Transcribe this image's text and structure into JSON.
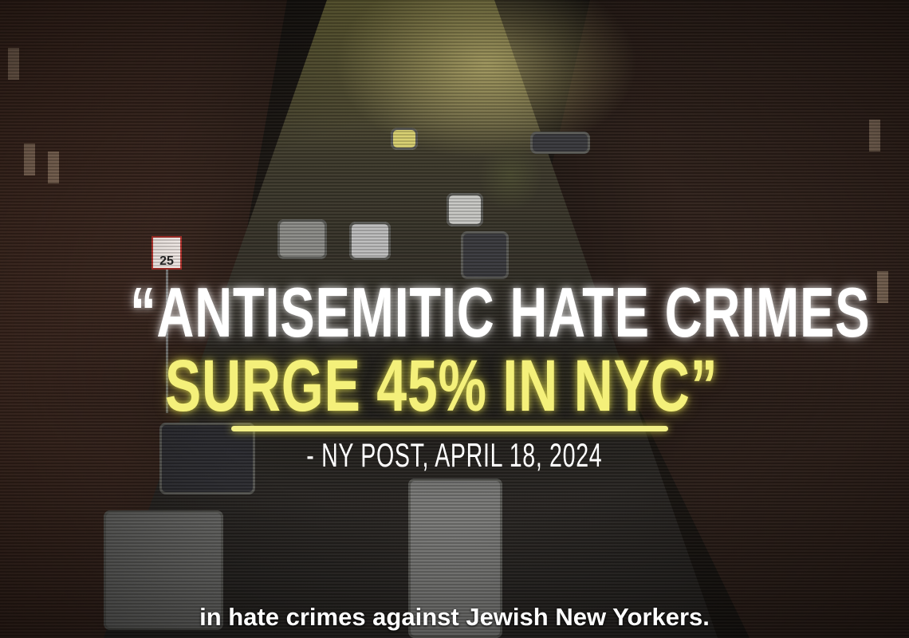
{
  "overlay": {
    "quote_line1": "“ANTISEMITIC HATE CRIMES",
    "quote_line2": "SURGE 45% IN NYC”",
    "attribution": "- NY POST, APRIL 18, 2024",
    "highlight_color": "#f4f07a",
    "headline_color": "#ffffff"
  },
  "subtitle": "in hate crimes against Jewish New Yorkers.",
  "scene": {
    "speed_limit_sign": "25"
  }
}
